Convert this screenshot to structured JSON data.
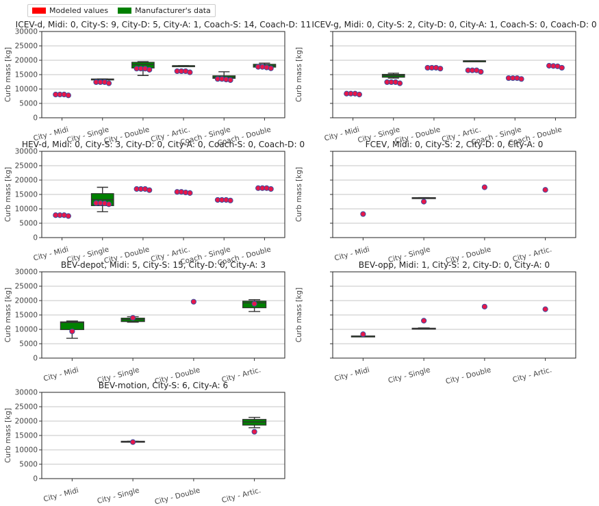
{
  "legend": {
    "items": [
      {
        "label": "Modeled values",
        "color": "#ff0000"
      },
      {
        "label": "Manufacturer's data",
        "color": "#008000"
      }
    ],
    "placement": "top-left"
  },
  "colors": {
    "box_fill": "#008000",
    "point_fill": "#e8174a",
    "point_edge": "#3a4fa0",
    "whisker": "#333333",
    "grid": "#b0b0b0"
  },
  "chart_data": [
    {
      "type": "box",
      "title": "ICEV-d, Midi: 0, City-S: 9, City-D: 5, City-A: 1, Coach-S: 14, Coach-D: 11",
      "ylabel": "Curb mass [kg]",
      "ylim": [
        0,
        30000
      ],
      "yticks": [
        0,
        5000,
        10000,
        15000,
        20000,
        25000,
        30000
      ],
      "show_ytick_labels": true,
      "grid": true,
      "categories": [
        "City - Midi",
        "City - Single",
        "City - Double",
        "City - Artic.",
        "Coach - Single",
        "Coach - Double"
      ],
      "boxes": [
        null,
        {
          "whislo": 13300,
          "q1": 13300,
          "med": 13400,
          "q3": 13500,
          "whishi": 13500
        },
        {
          "whislo": 14700,
          "q1": 17300,
          "med": 18500,
          "q3": 19300,
          "whishi": 19500
        },
        {
          "whislo": 18100,
          "q1": 18100,
          "med": 18100,
          "q3": 18100,
          "whishi": 18100
        },
        {
          "whislo": 13200,
          "q1": 13700,
          "med": 14100,
          "q3": 14600,
          "whishi": 16000
        },
        {
          "whislo": 17400,
          "q1": 17600,
          "med": 18100,
          "q3": 18600,
          "whishi": 19000
        }
      ],
      "points": [
        [
          8100,
          8100,
          8100,
          7800
        ],
        [
          12400,
          12400,
          12400,
          12000
        ],
        [
          17100,
          17100,
          17100,
          16700
        ],
        [
          16200,
          16200,
          16200,
          15800
        ],
        [
          13500,
          13500,
          13300,
          13100
        ],
        [
          17700,
          17700,
          17500,
          17200
        ]
      ]
    },
    {
      "type": "box",
      "title": "ICEV-g, Midi: 0, City-S: 2, City-D: 0, City-A: 1, Coach-S: 0, Coach-D: 0",
      "ylabel": "Curb mass [kg]",
      "ylim": [
        0,
        30000
      ],
      "yticks": [
        0,
        5000,
        10000,
        15000,
        20000,
        25000,
        30000
      ],
      "show_ytick_labels": false,
      "grid": true,
      "categories": [
        "City - Midi",
        "City - Single",
        "City - Double",
        "City - Artic.",
        "Coach - Single",
        "Coach - Double"
      ],
      "boxes": [
        null,
        {
          "whislo": 13800,
          "q1": 14100,
          "med": 14700,
          "q3": 15100,
          "whishi": 15500
        },
        null,
        {
          "whislo": 19800,
          "q1": 19800,
          "med": 19800,
          "q3": 19800,
          "whishi": 19800
        },
        null,
        null
      ],
      "points": [
        [
          8400,
          8400,
          8400,
          8100
        ],
        [
          12400,
          12400,
          12400,
          12000
        ],
        [
          17400,
          17400,
          17400,
          17100
        ],
        [
          16500,
          16500,
          16500,
          16000
        ],
        [
          13800,
          13800,
          13800,
          13500
        ],
        [
          18100,
          18000,
          17900,
          17400
        ]
      ]
    },
    {
      "type": "box",
      "title": "HEV-d, Midi: 0, City-S: 3, City-D: 0, City-A: 0, Coach-S: 0, Coach-D: 0",
      "ylabel": "Curb mass [kg]",
      "ylim": [
        0,
        30000
      ],
      "yticks": [
        0,
        5000,
        10000,
        15000,
        20000,
        25000,
        30000
      ],
      "show_ytick_labels": true,
      "grid": true,
      "categories": [
        "City - Midi",
        "City - Single",
        "City - Double",
        "City - Artic.",
        "Coach - Single",
        "Coach - Double"
      ],
      "boxes": [
        null,
        {
          "whislo": 9000,
          "q1": 11100,
          "med": 13200,
          "q3": 15300,
          "whishi": 17500
        },
        null,
        null,
        null,
        null
      ],
      "points": [
        [
          7800,
          7800,
          7800,
          7500
        ],
        [
          12000,
          12000,
          11900,
          11600
        ],
        [
          16900,
          16900,
          16900,
          16500
        ],
        [
          15900,
          15900,
          15700,
          15500
        ],
        [
          13100,
          13100,
          13100,
          12900
        ],
        [
          17200,
          17200,
          17200,
          16900
        ]
      ]
    },
    {
      "type": "box",
      "title": "FCEV, Midi: 0, City-S: 2, City-D: 0, City-A: 0",
      "ylabel": "Curb mass [kg]",
      "ylim": [
        0,
        30000
      ],
      "yticks": [
        0,
        5000,
        10000,
        15000,
        20000,
        25000,
        30000
      ],
      "show_ytick_labels": false,
      "grid": true,
      "categories": [
        "City - Midi",
        "City - Single",
        "City - Double",
        "City - Artic."
      ],
      "boxes": [
        null,
        {
          "whislo": 13700,
          "q1": 13700,
          "med": 13800,
          "q3": 13900,
          "whishi": 13900
        },
        null,
        null
      ],
      "points": [
        [
          8200
        ],
        [
          12500
        ],
        [
          17500
        ],
        [
          16600
        ]
      ]
    },
    {
      "type": "box",
      "title": "BEV-depot, Midi: 5, City-S: 15, City-D: 0, City-A: 3",
      "ylabel": "Curb mass [kg]",
      "ylim": [
        0,
        30000
      ],
      "yticks": [
        0,
        5000,
        10000,
        15000,
        20000,
        25000,
        30000
      ],
      "show_ytick_labels": true,
      "grid": true,
      "categories": [
        "City - Midi",
        "City - Single",
        "City - Double",
        "City - Artic."
      ],
      "boxes": [
        {
          "whislo": 6900,
          "q1": 9900,
          "med": 12400,
          "q3": 12600,
          "whishi": 12900
        },
        {
          "whislo": 12500,
          "q1": 12700,
          "med": 13400,
          "q3": 13900,
          "whishi": 14400
        },
        null,
        {
          "whislo": 16200,
          "q1": 17500,
          "med": 19200,
          "q3": 19800,
          "whishi": 20300
        }
      ],
      "points": [
        [
          9300
        ],
        [
          14000
        ],
        [
          19600
        ],
        [
          18900
        ]
      ]
    },
    {
      "type": "box",
      "title": "BEV-opp, Midi: 1, City-S: 2, City-D: 0, City-A: 0",
      "ylabel": "Curb mass [kg]",
      "ylim": [
        0,
        30000
      ],
      "yticks": [
        0,
        5000,
        10000,
        15000,
        20000,
        25000,
        30000
      ],
      "show_ytick_labels": false,
      "grid": true,
      "categories": [
        "City - Midi",
        "City - Single",
        "City - Double",
        "City - Artic."
      ],
      "boxes": [
        {
          "whislo": 7700,
          "q1": 7700,
          "med": 7700,
          "q3": 7700,
          "whishi": 7700
        },
        {
          "whislo": 10100,
          "q1": 10200,
          "med": 10300,
          "q3": 10400,
          "whishi": 10500
        },
        null,
        null
      ],
      "points": [
        [
          8300
        ],
        [
          13000
        ],
        [
          17900
        ],
        [
          17000
        ]
      ]
    },
    {
      "type": "box",
      "title": "BEV-motion, City-S: 6, City-A: 6",
      "ylabel": "Curb mass [kg]",
      "ylim": [
        0,
        30000
      ],
      "yticks": [
        0,
        5000,
        10000,
        15000,
        20000,
        25000,
        30000
      ],
      "show_ytick_labels": true,
      "grid": true,
      "categories": [
        "City - Midi",
        "City - Single",
        "City - Double",
        "City - Artic."
      ],
      "boxes": [
        null,
        {
          "whislo": 12900,
          "q1": 12900,
          "med": 12900,
          "q3": 13000,
          "whishi": 13000
        },
        null,
        {
          "whislo": 17700,
          "q1": 18600,
          "med": 19700,
          "q3": 20600,
          "whishi": 21300
        }
      ],
      "points": [
        [],
        [
          12700
        ],
        [],
        [
          16300
        ]
      ]
    }
  ]
}
